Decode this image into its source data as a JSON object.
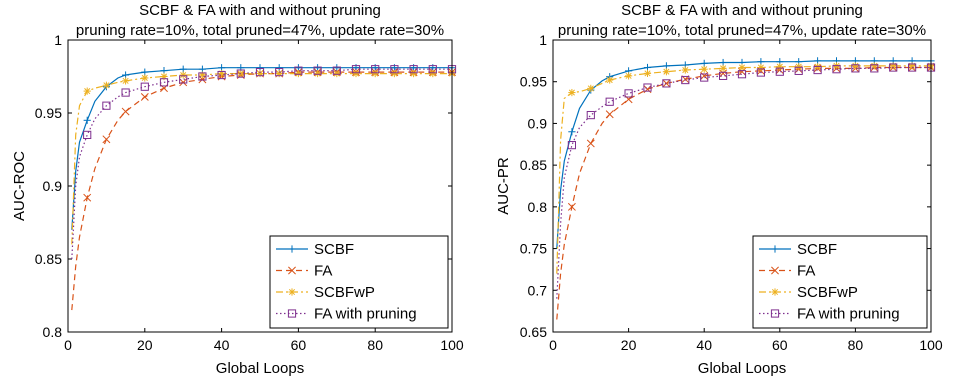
{
  "chart_data": [
    {
      "type": "line",
      "title": "SCBF & FA with and without pruning",
      "subtitle": "pruning rate=10%, total pruned=47%, update rate=30%",
      "xlabel": "Global Loops",
      "ylabel": "AUC-ROC",
      "xlim": [
        0,
        100
      ],
      "ylim": [
        0.8,
        1
      ],
      "xticks": [
        0,
        20,
        40,
        60,
        80,
        100
      ],
      "yticks": [
        0.8,
        0.85,
        0.9,
        0.95,
        1
      ],
      "ytick_labels": [
        "0.8",
        "0.85",
        "0.9",
        "0.95",
        "1"
      ],
      "legend": "bottom-right",
      "x": [
        1,
        2,
        3,
        5,
        7,
        10,
        13,
        15,
        20,
        25,
        30,
        35,
        40,
        45,
        50,
        55,
        60,
        65,
        70,
        75,
        80,
        85,
        90,
        95,
        100
      ],
      "series": [
        {
          "name": "SCBF",
          "color": "#0072BD",
          "dash": "solid",
          "marker": "plus",
          "values": [
            0.87,
            0.91,
            0.93,
            0.945,
            0.958,
            0.968,
            0.974,
            0.976,
            0.978,
            0.979,
            0.98,
            0.98,
            0.981,
            0.981,
            0.981,
            0.981,
            0.981,
            0.981,
            0.981,
            0.981,
            0.981,
            0.981,
            0.981,
            0.981,
            0.981
          ]
        },
        {
          "name": "FA",
          "color": "#D95319",
          "dash": "dashed",
          "marker": "x",
          "values": [
            0.815,
            0.845,
            0.865,
            0.892,
            0.912,
            0.932,
            0.945,
            0.951,
            0.961,
            0.967,
            0.971,
            0.973,
            0.975,
            0.976,
            0.977,
            0.977,
            0.978,
            0.978,
            0.978,
            0.978,
            0.978,
            0.978,
            0.978,
            0.978,
            0.978
          ]
        },
        {
          "name": "SCBFwP",
          "color": "#EDB120",
          "dash": "dashdot",
          "marker": "star",
          "values": [
            0.86,
            0.935,
            0.955,
            0.965,
            0.967,
            0.969,
            0.971,
            0.972,
            0.974,
            0.975,
            0.976,
            0.976,
            0.977,
            0.977,
            0.977,
            0.977,
            0.977,
            0.977,
            0.977,
            0.977,
            0.977,
            0.977,
            0.977,
            0.977,
            0.977
          ]
        },
        {
          "name": "FA with pruning",
          "color": "#7E2F8E",
          "dash": "dotted",
          "marker": "square",
          "values": [
            0.85,
            0.9,
            0.92,
            0.935,
            0.946,
            0.955,
            0.961,
            0.964,
            0.968,
            0.971,
            0.973,
            0.975,
            0.976,
            0.977,
            0.978,
            0.978,
            0.979,
            0.979,
            0.979,
            0.98,
            0.98,
            0.98,
            0.98,
            0.98,
            0.98
          ]
        }
      ]
    },
    {
      "type": "line",
      "title": "SCBF & FA with and without pruning",
      "subtitle": "pruning rate=10%, total pruned=47%, update rate=30%",
      "xlabel": "Global Loops",
      "ylabel": "AUC-PR",
      "xlim": [
        0,
        100
      ],
      "ylim": [
        0.65,
        1
      ],
      "xticks": [
        0,
        20,
        40,
        60,
        80,
        100
      ],
      "yticks": [
        0.65,
        0.7,
        0.75,
        0.8,
        0.85,
        0.9,
        0.95,
        1
      ],
      "ytick_labels": [
        "0.65",
        "0.7",
        "0.75",
        "0.8",
        "0.85",
        "0.9",
        "0.95",
        "1"
      ],
      "legend": "bottom-right",
      "x": [
        1,
        2,
        3,
        5,
        7,
        10,
        13,
        15,
        20,
        25,
        30,
        35,
        40,
        45,
        50,
        55,
        60,
        65,
        70,
        75,
        80,
        85,
        90,
        95,
        100
      ],
      "series": [
        {
          "name": "SCBF",
          "color": "#0072BD",
          "dash": "solid",
          "marker": "plus",
          "values": [
            0.75,
            0.82,
            0.855,
            0.89,
            0.918,
            0.94,
            0.951,
            0.956,
            0.963,
            0.967,
            0.969,
            0.97,
            0.972,
            0.973,
            0.973,
            0.974,
            0.974,
            0.974,
            0.975,
            0.975,
            0.975,
            0.975,
            0.975,
            0.975,
            0.975
          ]
        },
        {
          "name": "FA",
          "color": "#D95319",
          "dash": "dashed",
          "marker": "x",
          "values": [
            0.665,
            0.72,
            0.755,
            0.8,
            0.84,
            0.876,
            0.9,
            0.911,
            0.929,
            0.941,
            0.948,
            0.953,
            0.957,
            0.96,
            0.962,
            0.963,
            0.964,
            0.965,
            0.966,
            0.966,
            0.966,
            0.967,
            0.967,
            0.967,
            0.967
          ]
        },
        {
          "name": "SCBFwP",
          "color": "#EDB120",
          "dash": "dashdot",
          "marker": "star",
          "values": [
            0.72,
            0.88,
            0.93,
            0.937,
            0.938,
            0.942,
            0.948,
            0.952,
            0.957,
            0.96,
            0.962,
            0.964,
            0.965,
            0.966,
            0.967,
            0.967,
            0.968,
            0.968,
            0.968,
            0.969,
            0.969,
            0.969,
            0.969,
            0.969,
            0.969
          ]
        },
        {
          "name": "FA with pruning",
          "color": "#7E2F8E",
          "dash": "dotted",
          "marker": "square",
          "values": [
            0.69,
            0.78,
            0.835,
            0.874,
            0.895,
            0.91,
            0.92,
            0.926,
            0.936,
            0.943,
            0.948,
            0.952,
            0.955,
            0.957,
            0.959,
            0.961,
            0.962,
            0.963,
            0.964,
            0.965,
            0.966,
            0.966,
            0.967,
            0.967,
            0.967
          ]
        }
      ]
    }
  ]
}
